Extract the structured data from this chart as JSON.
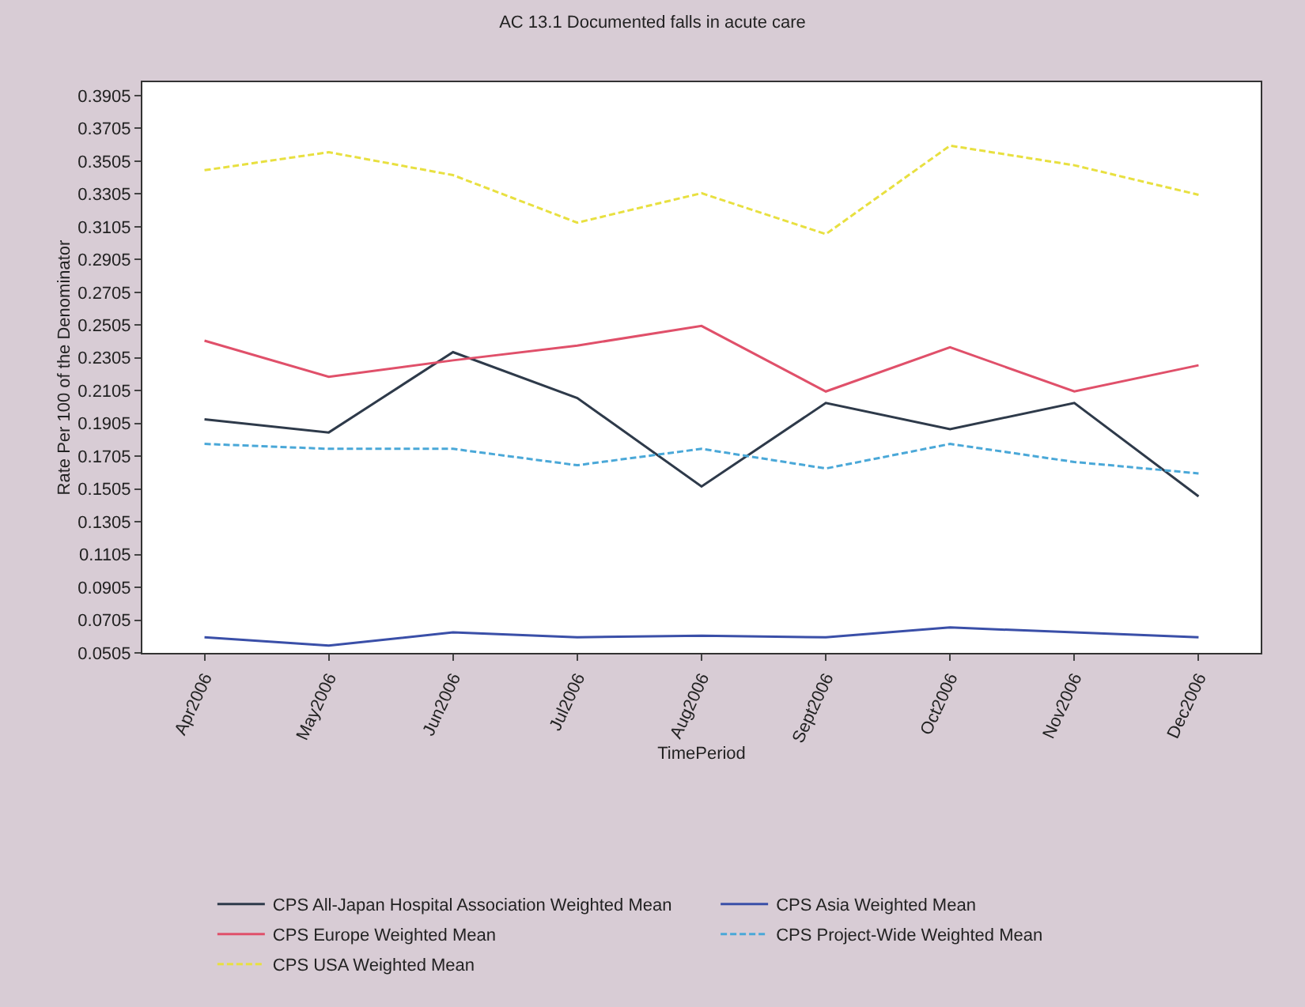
{
  "chart_data": {
    "type": "line",
    "title": "AC 13.1 Documented falls in acute care",
    "xlabel": "TimePeriod",
    "ylabel": "Rate Per 100 of the Denominator",
    "categories": [
      "Apr2006",
      "May2006",
      "Jun2006",
      "Jul2006",
      "Aug2006",
      "Sept2006",
      "Oct2006",
      "Nov2006",
      "Dec2006"
    ],
    "series": [
      {
        "name": "CPS All-Japan Hospital Association Weighted Mean",
        "color": "#2e3a4a",
        "line_style": "solid",
        "values": [
          0.193,
          0.185,
          0.234,
          0.206,
          0.152,
          0.203,
          0.187,
          0.203,
          0.146
        ]
      },
      {
        "name": "CPS Asia Weighted Mean",
        "color": "#3a4fa8",
        "line_style": "solid",
        "values": [
          0.06,
          0.055,
          0.063,
          0.06,
          0.061,
          0.06,
          0.066,
          0.063,
          0.06
        ]
      },
      {
        "name": "CPS Europe Weighted Mean",
        "color": "#e0506a",
        "line_style": "solid",
        "values": [
          0.241,
          0.219,
          0.229,
          0.238,
          0.25,
          0.21,
          0.237,
          0.21,
          0.226
        ]
      },
      {
        "name": "CPS Project-Wide Weighted Mean",
        "color": "#4aa8d8",
        "line_style": "dashed",
        "values": [
          0.178,
          0.175,
          0.175,
          0.165,
          0.175,
          0.163,
          0.178,
          0.167,
          0.16
        ]
      },
      {
        "name": "CPS USA Weighted Mean",
        "color": "#e8e040",
        "line_style": "dashed",
        "values": [
          0.345,
          0.356,
          0.342,
          0.313,
          0.331,
          0.306,
          0.36,
          0.348,
          0.33
        ]
      }
    ],
    "ylim": [
      0.0505,
      0.3987
    ],
    "yticks": [
      0.0505,
      0.0705,
      0.0905,
      0.1105,
      0.1305,
      0.1505,
      0.1705,
      0.1905,
      0.2105,
      0.2305,
      0.2505,
      0.2705,
      0.2905,
      0.3105,
      0.3305,
      0.3505,
      0.3705,
      0.3905
    ],
    "grid": false,
    "legend": "bottom",
    "marker": "none"
  }
}
